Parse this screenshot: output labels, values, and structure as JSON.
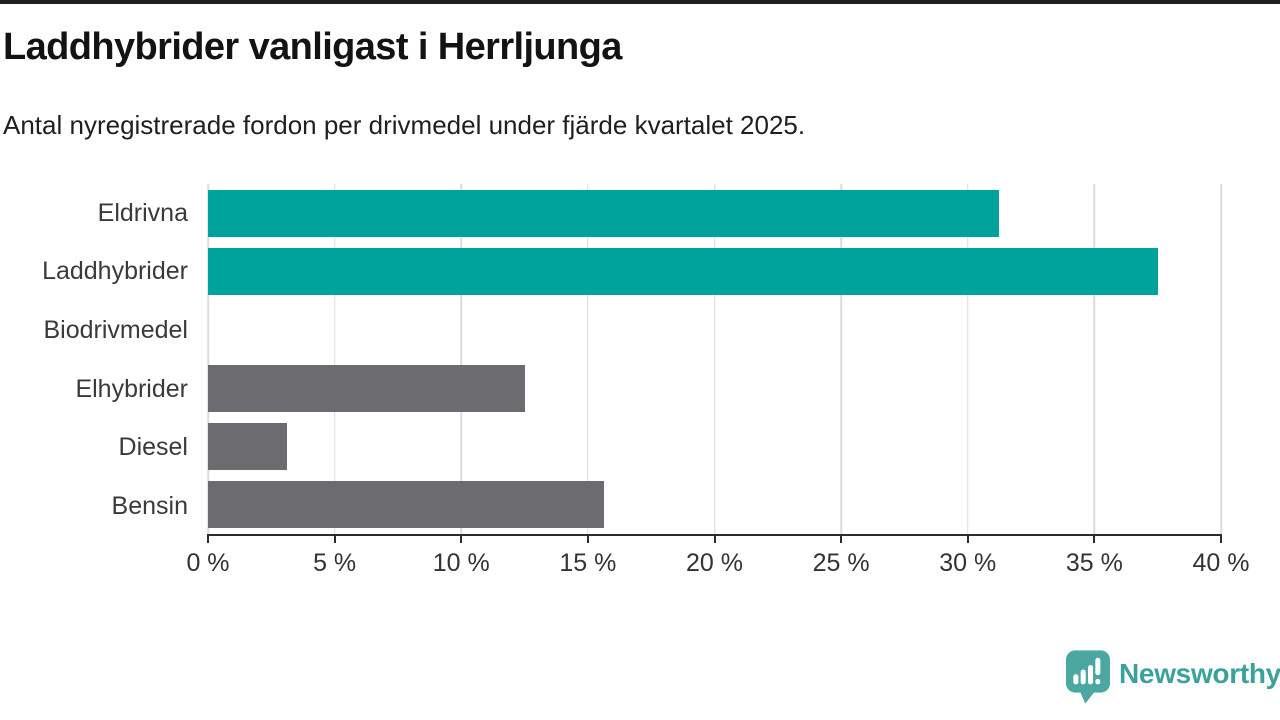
{
  "header": {
    "title": "Laddhybrider vanligast i Herrljunga",
    "subtitle": "Antal nyregistrerade fordon per drivmedel under fjärde kvartalet 2025."
  },
  "chart_data": {
    "type": "bar",
    "orientation": "horizontal",
    "title": "Laddhybrider vanligast i Herrljunga",
    "subtitle": "Antal nyregistrerade fordon per drivmedel under fjärde kvartalet 2025.",
    "categories": [
      "Eldrivna",
      "Laddhybrider",
      "Biodrivmedel",
      "Elhybrider",
      "Diesel",
      "Bensin"
    ],
    "values": [
      31.25,
      37.5,
      0,
      12.5,
      3.125,
      15.625
    ],
    "unit": "%",
    "xlim": [
      0,
      40
    ],
    "x_ticks": [
      0,
      5,
      10,
      15,
      20,
      25,
      30,
      35,
      40
    ],
    "x_tick_labels": [
      "0 %",
      "5 %",
      "10 %",
      "15 %",
      "20 %",
      "25 %",
      "30 %",
      "35 %",
      "40 %"
    ],
    "bar_colors": [
      "#00a39b",
      "#00a39b",
      "#6c6c70",
      "#6c6c70",
      "#6c6c70",
      "#6c6c70"
    ],
    "colors": {
      "highlight": "#00a39b",
      "default": "#6c6c70",
      "gridline": "#dcdcdc",
      "axis": "#2d2d2d"
    },
    "grid": true,
    "legend": false,
    "xlabel": "",
    "ylabel": ""
  },
  "branding": {
    "logo_text": "Newsworthy",
    "logo_text_color": "#3aa29b",
    "logo_icon_color": "#4ba7a1"
  }
}
